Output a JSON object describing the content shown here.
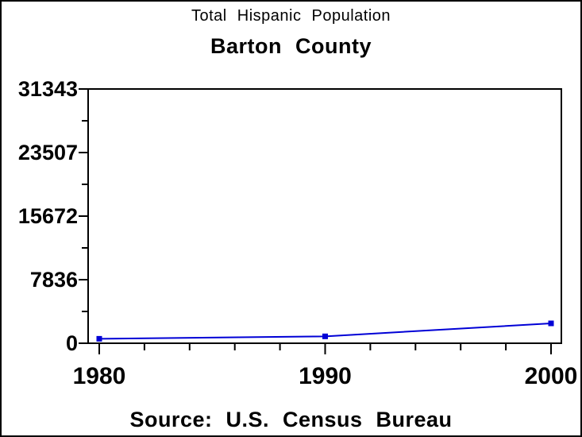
{
  "header": {
    "title": "Total Hispanic Population",
    "subtitle": "Barton County"
  },
  "footer": {
    "source": "Source: U.S. Census Bureau"
  },
  "chart_data": {
    "type": "line",
    "title": "Total Hispanic Population",
    "subtitle": "Barton County",
    "source": "Source: U.S. Census Bureau",
    "x": [
      1980,
      1990,
      2000
    ],
    "series": [
      {
        "name": "Total Hispanic Population",
        "values": [
          550,
          850,
          2450
        ]
      }
    ],
    "xlim": [
      1980,
      2000
    ],
    "ylim": [
      0,
      31343
    ],
    "xticks": {
      "major": [
        1980,
        1990,
        2000
      ],
      "labels": [
        "1980",
        "1990",
        "2000"
      ],
      "minor_step_years": 2
    },
    "yticks": {
      "major": [
        0,
        7836,
        15672,
        23507,
        31343
      ],
      "labels": [
        "0",
        "7836",
        "15672",
        "23507",
        "31343"
      ],
      "minors_between_majors": 1
    },
    "grid": false,
    "legend": null,
    "line_color": "#0000d6",
    "marker": "square",
    "marker_color": "#0000d6",
    "frame_color": "#000000"
  }
}
